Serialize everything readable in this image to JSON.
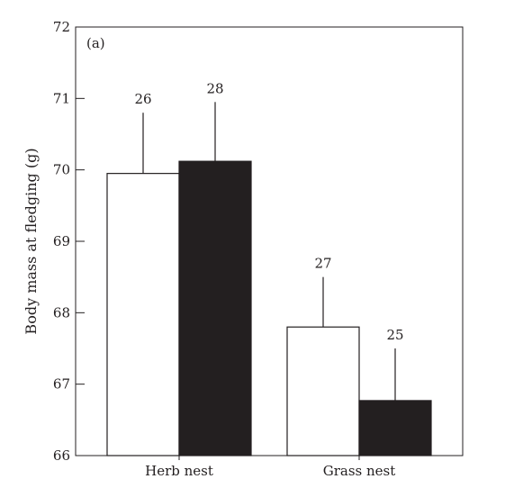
{
  "colors": {
    "ink": "#231f20",
    "background": "#ffffff",
    "series_1_fill": "#ffffff",
    "series_2_fill": "#231f20"
  },
  "chart_data": {
    "type": "bar",
    "panel_label": "(a)",
    "title": "",
    "xlabel": "",
    "ylabel": "Body mass at fledging (g)",
    "categories": [
      "Herb nest",
      "Grass nest"
    ],
    "ylim": [
      66,
      72
    ],
    "yticks": [
      "66",
      "67",
      "68",
      "69",
      "70",
      "71",
      "72"
    ],
    "grid": false,
    "legend": "none",
    "series": [
      {
        "values": [
          69.95,
          67.8
        ],
        "error_upper": [
          70.8,
          68.5
        ],
        "n_labels": [
          "26",
          "27"
        ],
        "fill": "#ffffff"
      },
      {
        "values": [
          70.12,
          66.77
        ],
        "error_upper": [
          70.95,
          67.5
        ],
        "n_labels": [
          "28",
          "25"
        ],
        "fill": "#231f20"
      }
    ]
  }
}
